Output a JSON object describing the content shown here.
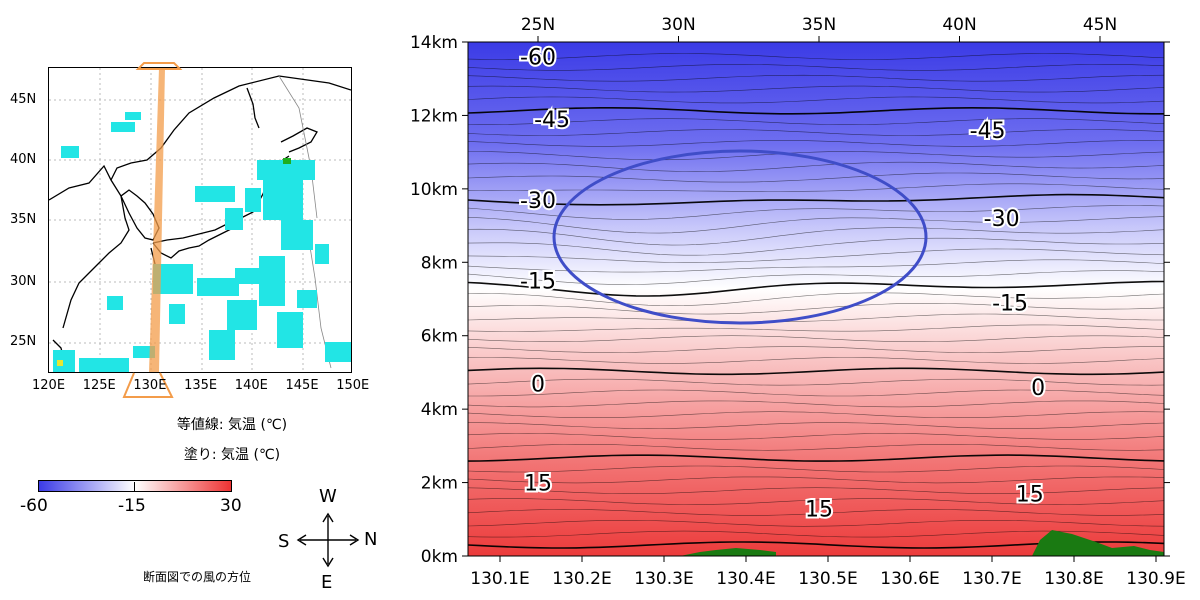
{
  "legend": {
    "line_label": "等値線: 気温 (℃)",
    "fill_label": "塗り: 気温 (℃)",
    "colorbar_ticks": [
      "-60",
      "-15",
      "30"
    ],
    "colors": {
      "cold": "#3b3be6",
      "mid": "#ffffff",
      "warm": "#ee3333"
    }
  },
  "compass": {
    "up": "W",
    "down": "E",
    "left": "S",
    "right": "N"
  },
  "compass_caption": "断面図での風の方位",
  "map": {
    "lat_ticks": [
      "45N",
      "40N",
      "35N",
      "30N",
      "25N"
    ],
    "lon_ticks": [
      "120E",
      "125E",
      "130E",
      "135E",
      "140E",
      "145E",
      "150E"
    ],
    "section_color": "#f39c4a",
    "cloud_color": "#22e5e5"
  },
  "chart_data": {
    "type": "heatmap",
    "title": "",
    "xlabel": "",
    "ylabel": "",
    "x_bottom_ticks": [
      "130.1E",
      "130.2E",
      "130.3E",
      "130.4E",
      "130.5E",
      "130.6E",
      "130.7E",
      "130.8E",
      "130.9E"
    ],
    "x_top_ticks": [
      "25N",
      "30N",
      "35N",
      "40N",
      "45N"
    ],
    "y_ticks": [
      "0km",
      "2km",
      "4km",
      "6km",
      "8km",
      "10km",
      "12km",
      "14km"
    ],
    "ylim": [
      0,
      14
    ],
    "colorscale": {
      "min": -60,
      "mid": -15,
      "max": 30
    },
    "contour_labels": [
      {
        "text": "-60",
        "lat": 25.0,
        "height_km": 13.6
      },
      {
        "text": "-45",
        "lat": 25.5,
        "height_km": 11.9
      },
      {
        "text": "-45",
        "lat": 41.0,
        "height_km": 11.6
      },
      {
        "text": "-30",
        "lat": 25.0,
        "height_km": 9.7
      },
      {
        "text": "-30",
        "lat": 41.5,
        "height_km": 9.2
      },
      {
        "text": "-15",
        "lat": 25.0,
        "height_km": 7.5
      },
      {
        "text": "-15",
        "lat": 41.8,
        "height_km": 6.9
      },
      {
        "text": "0",
        "lat": 25.0,
        "height_km": 4.7
      },
      {
        "text": "0",
        "lat": 42.8,
        "height_km": 4.6
      },
      {
        "text": "15",
        "lat": 25.0,
        "height_km": 2.0
      },
      {
        "text": "15",
        "lat": 42.5,
        "height_km": 1.7
      },
      {
        "text": "15",
        "lat": 35.0,
        "height_km": 1.3
      }
    ],
    "annotation": {
      "type": "ellipse",
      "color": "#3f4dc8"
    },
    "terrain_color": "#1a7a12"
  }
}
